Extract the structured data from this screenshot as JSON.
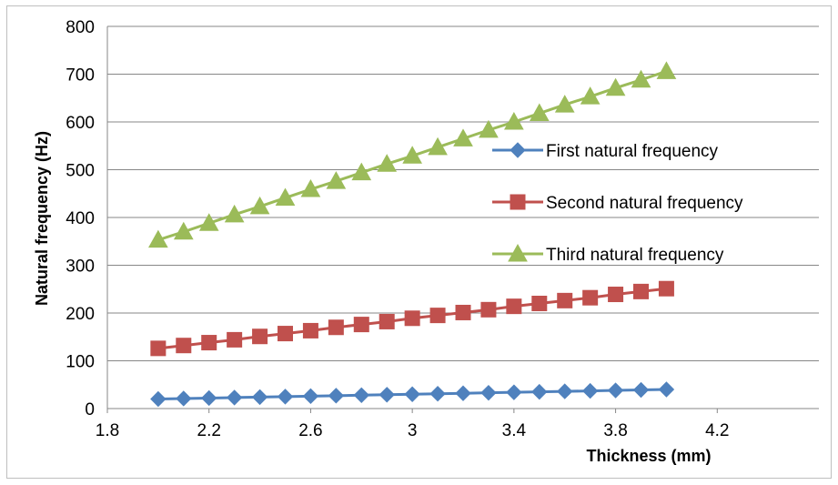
{
  "chart_data": {
    "type": "line",
    "title": "",
    "xlabel": "Thickness (mm)",
    "ylabel": "Natural frequency (Hz)",
    "xlim": [
      1.8,
      4.6
    ],
    "ylim": [
      0,
      800
    ],
    "x_ticks": [
      1.8,
      2.2,
      2.6,
      3,
      3.4,
      3.8,
      4.2
    ],
    "y_ticks": [
      0,
      100,
      200,
      300,
      400,
      500,
      600,
      700,
      800
    ],
    "grid": "horizontal",
    "legend_position": "right",
    "x": [
      2.0,
      2.1,
      2.2,
      2.3,
      2.4,
      2.5,
      2.6,
      2.7,
      2.8,
      2.9,
      3.0,
      3.1,
      3.2,
      3.3,
      3.4,
      3.5,
      3.6,
      3.7,
      3.8,
      3.9,
      4.0
    ],
    "series": [
      {
        "name": "First natural frequency",
        "color": "#4f81bd",
        "marker": "diamond",
        "values": [
          20,
          21,
          22,
          23,
          24,
          25,
          26,
          27,
          28,
          29,
          30,
          31,
          32,
          33,
          34,
          35,
          36,
          37,
          38,
          39,
          40
        ]
      },
      {
        "name": "Second natural frequency",
        "color": "#c0504d",
        "marker": "square",
        "values": [
          126,
          132,
          138,
          144,
          151,
          157,
          163,
          170,
          176,
          182,
          189,
          195,
          201,
          207,
          214,
          220,
          226,
          232,
          239,
          245,
          251
        ]
      },
      {
        "name": "Third natural frequency",
        "color": "#9bbb59",
        "marker": "triangle",
        "values": [
          353,
          370,
          388,
          406,
          423,
          441,
          459,
          476,
          494,
          512,
          529,
          547,
          565,
          583,
          600,
          618,
          636,
          653,
          671,
          688,
          706
        ]
      }
    ]
  }
}
